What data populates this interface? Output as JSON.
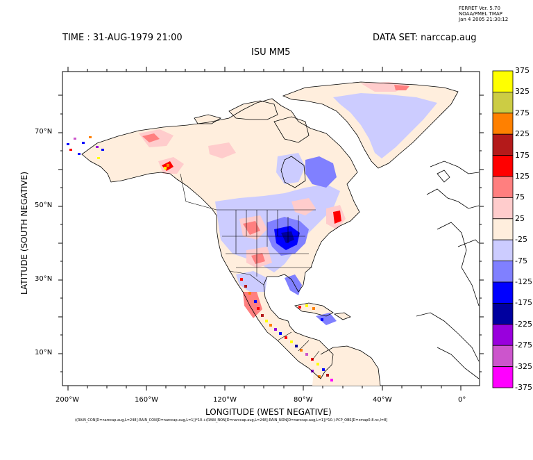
{
  "ferret": {
    "line1": "FERRET Ver. 5.70",
    "line2": "NOAA/PMEL TMAP",
    "line3": "Jan  4 2005 21:30:12"
  },
  "header": {
    "time": "TIME : 31-AUG-1979 21:00",
    "dataset": "DATA SET: narccap.aug",
    "title": "ISU MM5"
  },
  "axes": {
    "xlabel": "LONGITUDE (WEST NEGATIVE)",
    "ylabel": "LATITUDE (SOUTH NEGATIVE)",
    "xticks": [
      "200°W",
      "160°W",
      "120°W",
      "80°W",
      "40°W",
      "0°"
    ],
    "yticks": [
      "70°N",
      "50°N",
      "30°N",
      "10°N"
    ]
  },
  "colorbar": {
    "labels": [
      "375",
      "325",
      "275",
      "225",
      "175",
      "125",
      "75",
      "25",
      "-25",
      "-75",
      "-125",
      "-175",
      "-225",
      "-275",
      "-325",
      "-375"
    ],
    "colors": [
      "#ffff00",
      "#cccc44",
      "#ff8000",
      "#b41a1a",
      "#ff0000",
      "#ff7f7f",
      "#ffcccc",
      "#ffeedd",
      "#ccccff",
      "#8080ff",
      "#0000ff",
      "#00009f",
      "#9900dd",
      "#cc55cc",
      "#ff00ff"
    ]
  },
  "footer": {
    "text": "((RAIN_CON[D=narccap.aug,L=248]-RAIN_CON[D=narccap.aug,L=1])*10.+(RAIN_NON[D=narccap.aug,L=248]-RAIN_NON[D=narccap.aug,L=1])*10.)-PCP_OBS[D=cmap0.8.nc,l=8]"
  }
}
